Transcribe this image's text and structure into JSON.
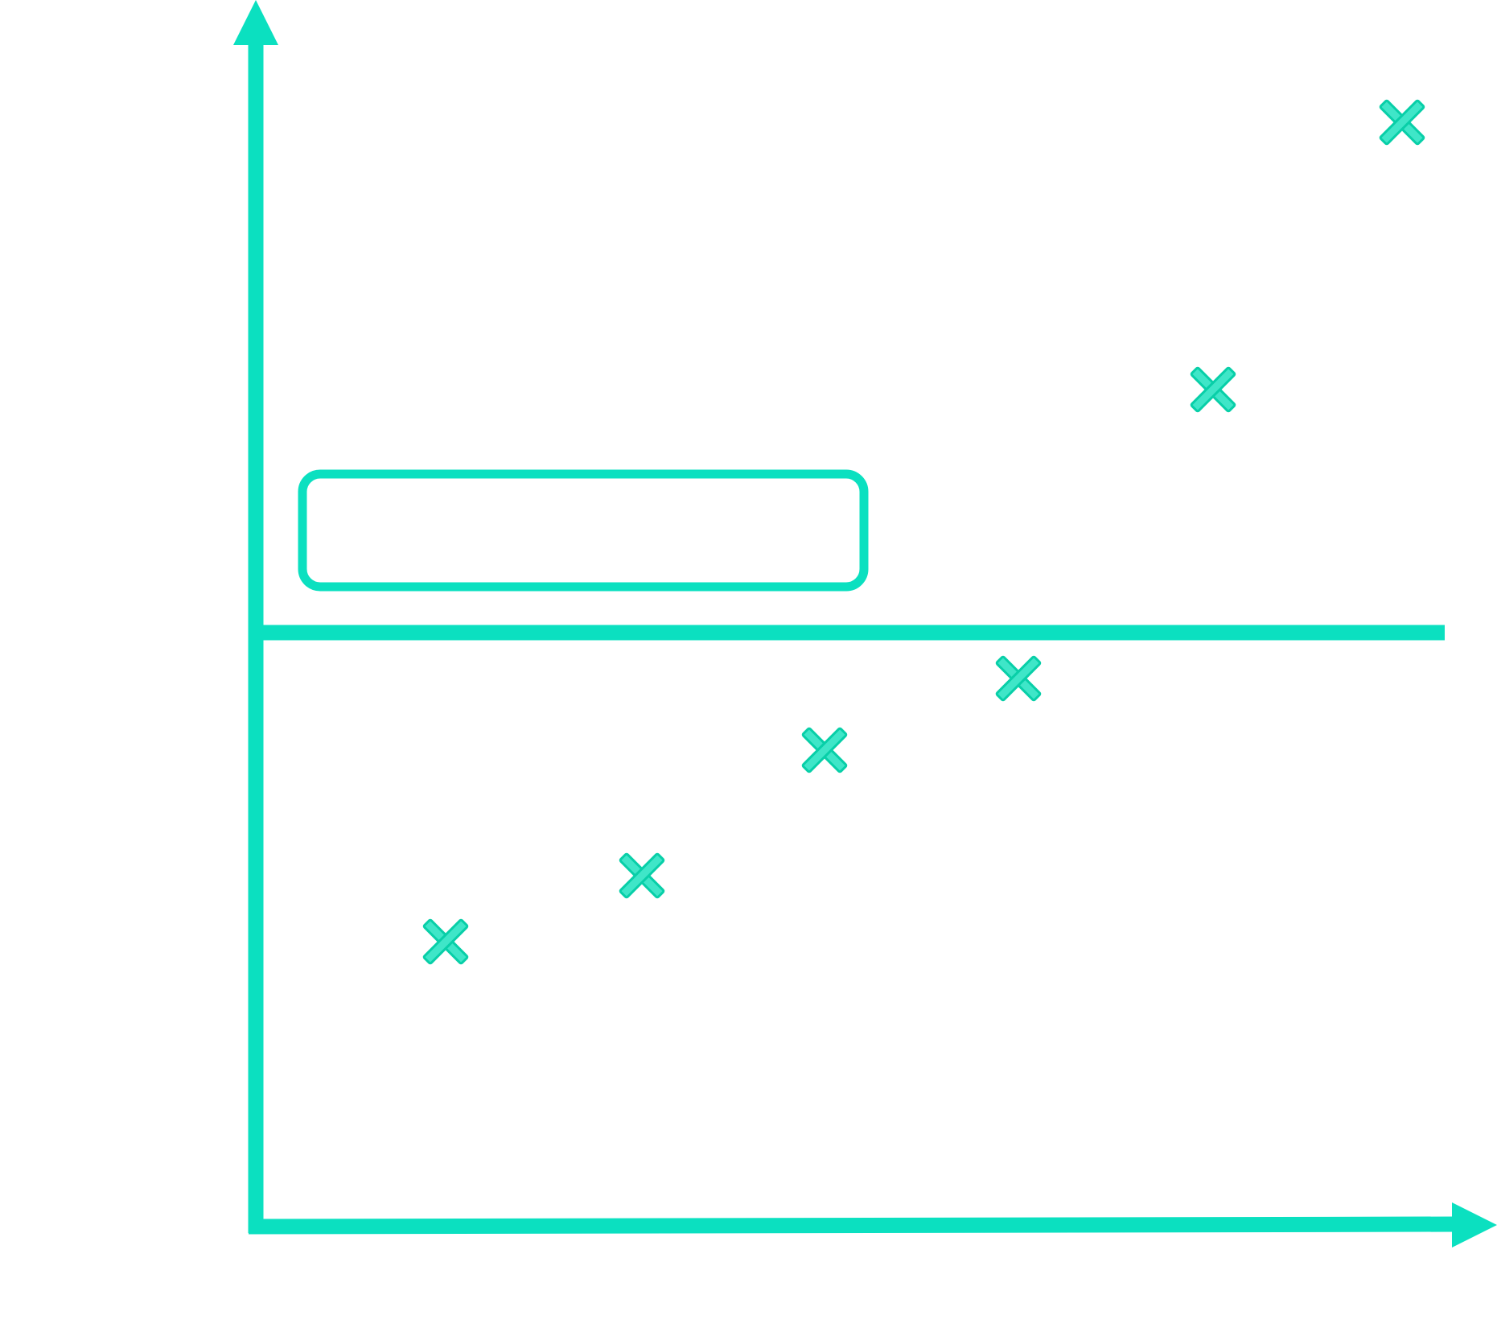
{
  "diagram": {
    "colors": {
      "stroke": "#0be0c0",
      "marker_fill": "#3fe6c8",
      "marker_edge": "#08cfa8",
      "background": "#ffffff"
    },
    "axes": {
      "x_arrow": true,
      "y_arrow": true
    },
    "elements": {
      "threshold_line": "horizontal-line",
      "empty_box": "rounded-rectangle",
      "marker_shape": "cross-icon",
      "marker_count": 6
    }
  }
}
